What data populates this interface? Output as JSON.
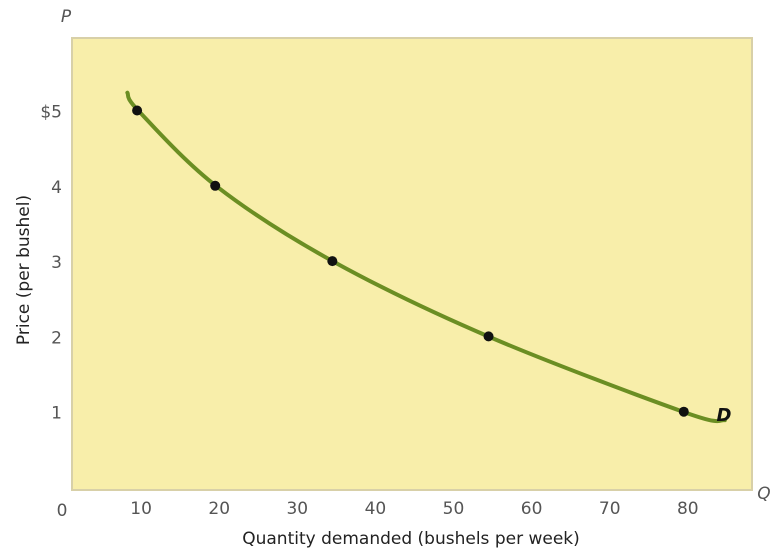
{
  "chart_data": {
    "type": "line",
    "title": "",
    "xlabel": "Quantity demanded (bushels per week)",
    "ylabel": "Price (per bushel)",
    "x_axis_letter": "Q",
    "y_axis_letter": "P",
    "origin_label": "0",
    "x_ticks": [
      {
        "value": 10,
        "label": "10"
      },
      {
        "value": 20,
        "label": "20"
      },
      {
        "value": 30,
        "label": "30"
      },
      {
        "value": 40,
        "label": "40"
      },
      {
        "value": 50,
        "label": "50"
      },
      {
        "value": 60,
        "label": "60"
      },
      {
        "value": 70,
        "label": "70"
      },
      {
        "value": 80,
        "label": "80"
      }
    ],
    "y_ticks": [
      {
        "value": 1,
        "label": "1"
      },
      {
        "value": 2,
        "label": "2"
      },
      {
        "value": 3,
        "label": "3"
      },
      {
        "value": 4,
        "label": "4"
      },
      {
        "value": 5,
        "label": "$5"
      }
    ],
    "xlim": [
      0,
      90
    ],
    "ylim": [
      0,
      6
    ],
    "grid": false,
    "series": [
      {
        "name": "D",
        "color": "#6b8e23",
        "points": [
          {
            "x": 10,
            "y": 5
          },
          {
            "x": 20,
            "y": 4
          },
          {
            "x": 35,
            "y": 3
          },
          {
            "x": 55,
            "y": 2
          },
          {
            "x": 80,
            "y": 1
          }
        ],
        "curve_extent": {
          "x_start": 8.5,
          "y_start": 5.25,
          "x_end": 85,
          "y_end": 0.9
        }
      }
    ]
  },
  "colors": {
    "plot_background": "#f8eeaa",
    "frame": "#d8d0a8",
    "curve": "#6b8e23",
    "markers": "#111111"
  }
}
